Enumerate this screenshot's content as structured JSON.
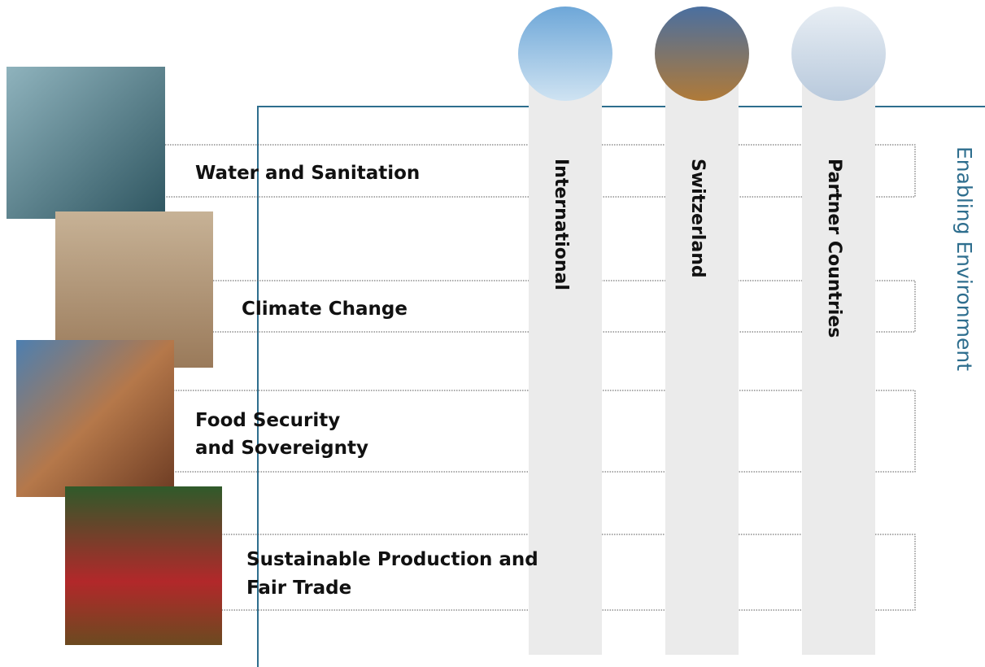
{
  "themes": [
    {
      "label": "Water and Sanitation"
    },
    {
      "label": "Climate Change"
    },
    {
      "label": "Food Security and Sovereignty"
    },
    {
      "label": "Sustainable Production and Fair Trade"
    }
  ],
  "levels": [
    {
      "label": "International"
    },
    {
      "label": "Switzerland"
    },
    {
      "label": "Partner Countries"
    }
  ],
  "side_label": "Enabling Environment"
}
